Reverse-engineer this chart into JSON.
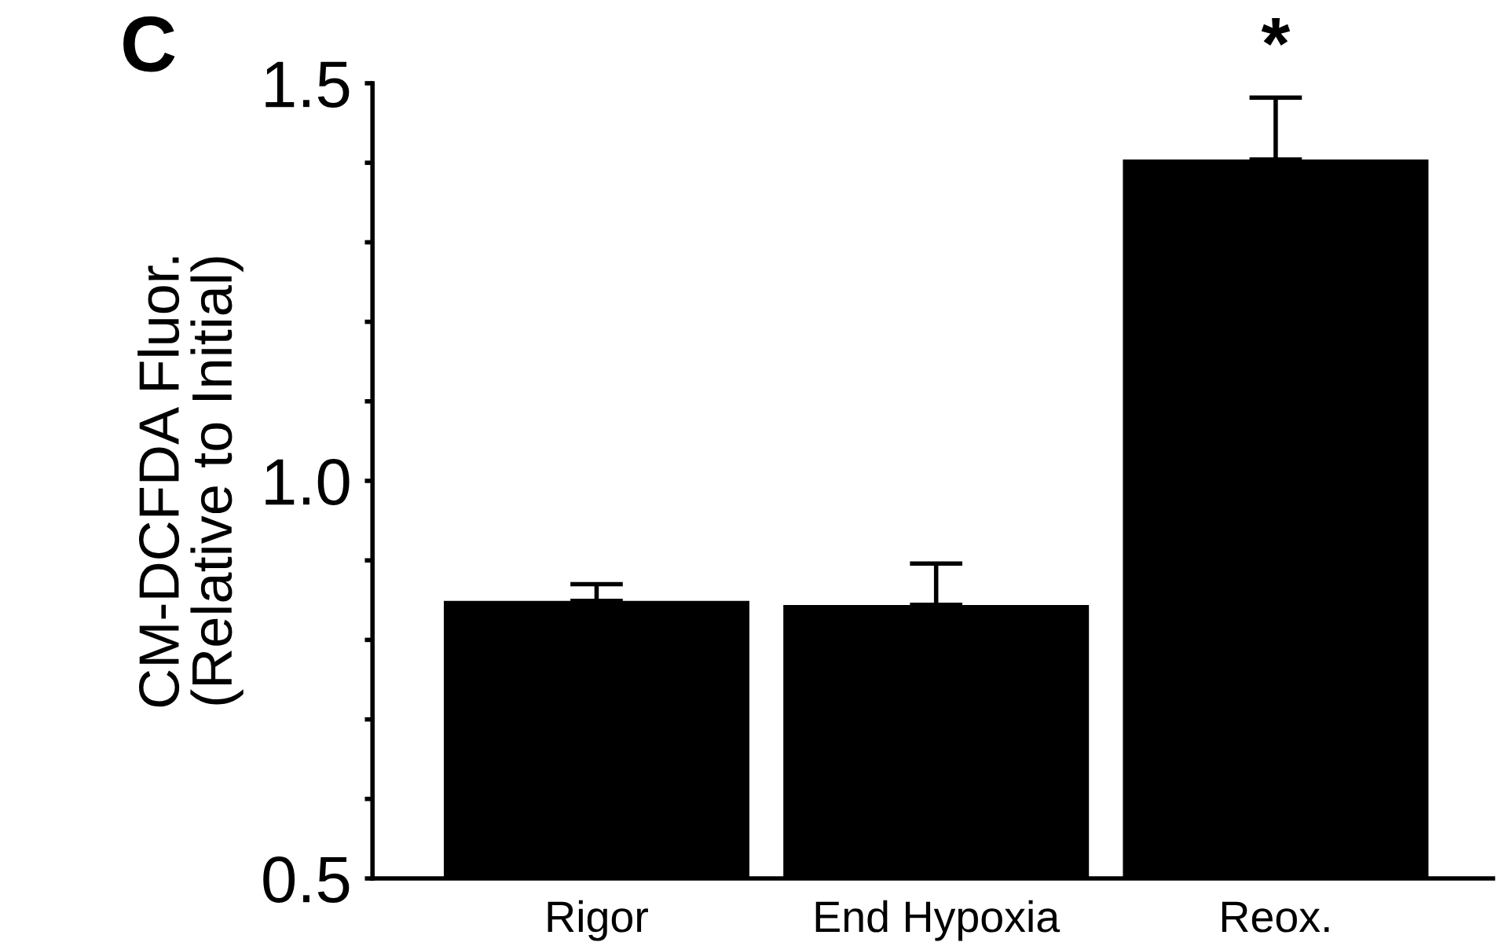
{
  "chart_data": {
    "type": "bar",
    "ylabel": "CM-DCFDA Fluor.\n(Relative to Initial)",
    "categories": [
      "Rigor",
      "End Hypoxia",
      "Reox."
    ],
    "values": [
      0.849,
      0.844,
      1.404
    ],
    "errors": [
      [
        0.849,
        0.87
      ],
      [
        0.844,
        0.896
      ],
      [
        1.404,
        1.482
      ]
    ],
    "color": "#000000",
    "ylim": [
      0.5,
      1.5
    ],
    "yticks": [
      0.5,
      {
        "value": 0.6,
        "label": null
      },
      {
        "value": 0.7,
        "label": null
      },
      {
        "value": 0.8,
        "label": null
      },
      {
        "value": 0.9,
        "label": null
      },
      {
        "value": 1.0,
        "label": "1.0"
      },
      {
        "value": 1.1,
        "label": null
      },
      {
        "value": 1.2,
        "label": null
      },
      {
        "value": 1.3,
        "label": null
      },
      {
        "value": 1.4,
        "label": null
      },
      1.5
    ],
    "grid": false,
    "annotations": [
      "C",
      {
        "text": "*",
        "x": "Reox.",
        "y": 1.482
      }
    ]
  }
}
